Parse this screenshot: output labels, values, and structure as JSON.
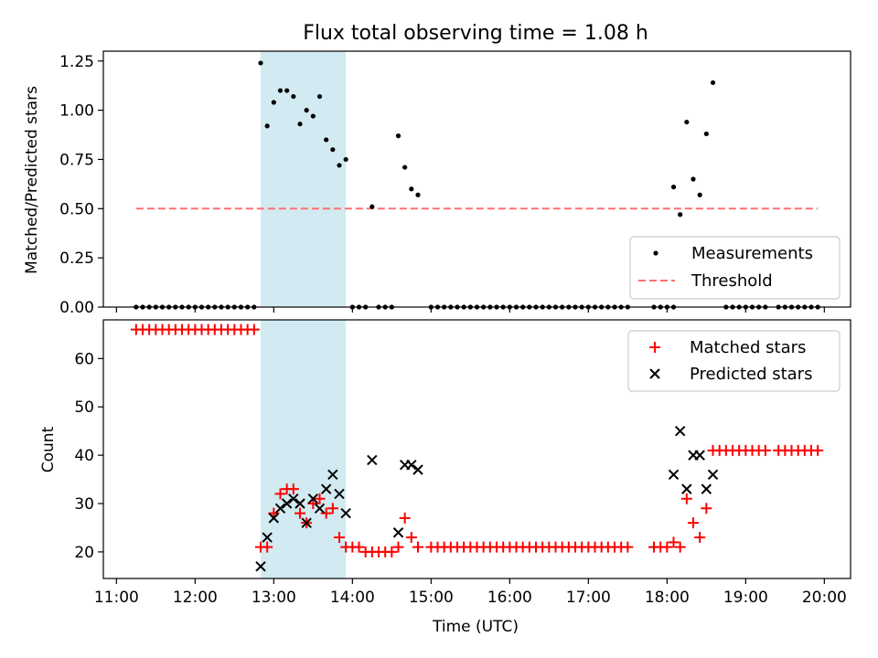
{
  "chart_data": [
    {
      "type": "scatter",
      "title": "Flux total observing time = 1.08 h",
      "ylabel": "Matched/Predicted stars",
      "ylim": [
        0,
        1.3
      ],
      "yticks": [
        0,
        0.25,
        0.5,
        0.75,
        1.0,
        1.25
      ],
      "ytick_labels": [
        "0.00",
        "0.25",
        "0.50",
        "0.75",
        "1.00",
        "1.25"
      ],
      "legend_position": "lower right",
      "highlight_span": {
        "x": [
          "12:50",
          "13:55"
        ],
        "color": "#add8e6"
      },
      "series": [
        {
          "name": "Measurements",
          "marker": "dot",
          "color": "#000000",
          "points": [
            [
              "11:15",
              0
            ],
            [
              "11:20",
              0
            ],
            [
              "11:25",
              0
            ],
            [
              "11:30",
              0
            ],
            [
              "11:35",
              0
            ],
            [
              "11:40",
              0
            ],
            [
              "11:45",
              0
            ],
            [
              "11:50",
              0
            ],
            [
              "11:55",
              0
            ],
            [
              "12:00",
              0
            ],
            [
              "12:05",
              0
            ],
            [
              "12:10",
              0
            ],
            [
              "12:15",
              0
            ],
            [
              "12:20",
              0
            ],
            [
              "12:25",
              0
            ],
            [
              "12:30",
              0
            ],
            [
              "12:35",
              0
            ],
            [
              "12:40",
              0
            ],
            [
              "12:45",
              0
            ],
            [
              "12:50",
              1.24
            ],
            [
              "12:55",
              0.92
            ],
            [
              "13:00",
              1.04
            ],
            [
              "13:05",
              1.1
            ],
            [
              "13:10",
              1.1
            ],
            [
              "13:15",
              1.07
            ],
            [
              "13:20",
              0.93
            ],
            [
              "13:25",
              1.0
            ],
            [
              "13:30",
              0.97
            ],
            [
              "13:35",
              1.07
            ],
            [
              "13:40",
              0.85
            ],
            [
              "13:45",
              0.8
            ],
            [
              "13:50",
              0.72
            ],
            [
              "13:55",
              0.75
            ],
            [
              "14:00",
              0
            ],
            [
              "14:05",
              0
            ],
            [
              "14:10",
              0
            ],
            [
              "14:15",
              0.51
            ],
            [
              "14:20",
              0
            ],
            [
              "14:25",
              0
            ],
            [
              "14:30",
              0
            ],
            [
              "14:35",
              0.87
            ],
            [
              "14:40",
              0.71
            ],
            [
              "14:45",
              0.6
            ],
            [
              "14:50",
              0.57
            ],
            [
              "15:00",
              0
            ],
            [
              "15:05",
              0
            ],
            [
              "15:10",
              0
            ],
            [
              "15:15",
              0
            ],
            [
              "15:20",
              0
            ],
            [
              "15:25",
              0
            ],
            [
              "15:30",
              0
            ],
            [
              "15:35",
              0
            ],
            [
              "15:40",
              0
            ],
            [
              "15:45",
              0
            ],
            [
              "15:50",
              0
            ],
            [
              "15:55",
              0
            ],
            [
              "16:00",
              0
            ],
            [
              "16:05",
              0
            ],
            [
              "16:10",
              0
            ],
            [
              "16:15",
              0
            ],
            [
              "16:20",
              0
            ],
            [
              "16:25",
              0
            ],
            [
              "16:30",
              0
            ],
            [
              "16:35",
              0
            ],
            [
              "16:40",
              0
            ],
            [
              "16:45",
              0
            ],
            [
              "16:50",
              0
            ],
            [
              "16:55",
              0
            ],
            [
              "17:00",
              0
            ],
            [
              "17:05",
              0
            ],
            [
              "17:10",
              0
            ],
            [
              "17:15",
              0
            ],
            [
              "17:20",
              0
            ],
            [
              "17:25",
              0
            ],
            [
              "17:30",
              0
            ],
            [
              "17:50",
              0
            ],
            [
              "17:55",
              0
            ],
            [
              "18:00",
              0
            ],
            [
              "18:05",
              0
            ],
            [
              "18:05",
              0.61
            ],
            [
              "18:10",
              0.47
            ],
            [
              "18:15",
              0.94
            ],
            [
              "18:20",
              0.65
            ],
            [
              "18:25",
              0.57
            ],
            [
              "18:30",
              0.88
            ],
            [
              "18:35",
              1.14
            ],
            [
              "18:45",
              0
            ],
            [
              "18:50",
              0
            ],
            [
              "18:55",
              0
            ],
            [
              "19:00",
              0
            ],
            [
              "19:05",
              0
            ],
            [
              "19:10",
              0
            ],
            [
              "19:15",
              0
            ],
            [
              "19:25",
              0
            ],
            [
              "19:30",
              0
            ],
            [
              "19:35",
              0
            ],
            [
              "19:40",
              0
            ],
            [
              "19:45",
              0
            ],
            [
              "19:50",
              0
            ],
            [
              "19:55",
              0
            ]
          ]
        },
        {
          "name": "Threshold",
          "marker": "dashed-line",
          "color": "#ff7070",
          "points": [
            [
              "11:15",
              0.5
            ],
            [
              "19:55",
              0.5
            ]
          ]
        }
      ]
    },
    {
      "type": "scatter",
      "xlabel": "Time (UTC)",
      "ylabel": "Count",
      "ylim": [
        14.5,
        68
      ],
      "yticks": [
        20,
        30,
        40,
        50,
        60
      ],
      "ytick_labels": [
        "20",
        "30",
        "40",
        "50",
        "60"
      ],
      "xticks": [
        "11:00",
        "12:00",
        "13:00",
        "14:00",
        "15:00",
        "16:00",
        "17:00",
        "18:00",
        "19:00",
        "20:00"
      ],
      "xtick_labels": [
        "11:00",
        "12:00",
        "13:00",
        "14:00",
        "15:00",
        "16:00",
        "17:00",
        "18:00",
        "19:00",
        "20:00"
      ],
      "xlim": [
        "10:50",
        "20:20"
      ],
      "legend_position": "upper right",
      "highlight_span": {
        "x": [
          "12:50",
          "13:55"
        ],
        "color": "#add8e6"
      },
      "series": [
        {
          "name": "Matched stars",
          "marker": "plus",
          "color": "#ff0000",
          "points": [
            [
              "11:15",
              66
            ],
            [
              "11:20",
              66
            ],
            [
              "11:25",
              66
            ],
            [
              "11:30",
              66
            ],
            [
              "11:35",
              66
            ],
            [
              "11:40",
              66
            ],
            [
              "11:45",
              66
            ],
            [
              "11:50",
              66
            ],
            [
              "11:55",
              66
            ],
            [
              "12:00",
              66
            ],
            [
              "12:05",
              66
            ],
            [
              "12:10",
              66
            ],
            [
              "12:15",
              66
            ],
            [
              "12:20",
              66
            ],
            [
              "12:25",
              66
            ],
            [
              "12:30",
              66
            ],
            [
              "12:35",
              66
            ],
            [
              "12:40",
              66
            ],
            [
              "12:45",
              66
            ],
            [
              "12:50",
              21
            ],
            [
              "12:55",
              21
            ],
            [
              "13:00",
              28
            ],
            [
              "13:05",
              32
            ],
            [
              "13:10",
              33
            ],
            [
              "13:15",
              33
            ],
            [
              "13:20",
              28
            ],
            [
              "13:25",
              26
            ],
            [
              "13:30",
              30
            ],
            [
              "13:35",
              31
            ],
            [
              "13:40",
              28
            ],
            [
              "13:45",
              29
            ],
            [
              "13:50",
              23
            ],
            [
              "13:55",
              21
            ],
            [
              "14:00",
              21
            ],
            [
              "14:05",
              21
            ],
            [
              "14:10",
              20
            ],
            [
              "14:15",
              20
            ],
            [
              "14:20",
              20
            ],
            [
              "14:25",
              20
            ],
            [
              "14:30",
              20
            ],
            [
              "14:35",
              21
            ],
            [
              "14:40",
              27
            ],
            [
              "14:45",
              23
            ],
            [
              "14:50",
              21
            ],
            [
              "15:00",
              21
            ],
            [
              "15:05",
              21
            ],
            [
              "15:10",
              21
            ],
            [
              "15:15",
              21
            ],
            [
              "15:20",
              21
            ],
            [
              "15:25",
              21
            ],
            [
              "15:30",
              21
            ],
            [
              "15:35",
              21
            ],
            [
              "15:40",
              21
            ],
            [
              "15:45",
              21
            ],
            [
              "15:50",
              21
            ],
            [
              "15:55",
              21
            ],
            [
              "16:00",
              21
            ],
            [
              "16:05",
              21
            ],
            [
              "16:10",
              21
            ],
            [
              "16:15",
              21
            ],
            [
              "16:20",
              21
            ],
            [
              "16:25",
              21
            ],
            [
              "16:30",
              21
            ],
            [
              "16:35",
              21
            ],
            [
              "16:40",
              21
            ],
            [
              "16:45",
              21
            ],
            [
              "16:50",
              21
            ],
            [
              "16:55",
              21
            ],
            [
              "17:00",
              21
            ],
            [
              "17:05",
              21
            ],
            [
              "17:10",
              21
            ],
            [
              "17:15",
              21
            ],
            [
              "17:20",
              21
            ],
            [
              "17:25",
              21
            ],
            [
              "17:30",
              21
            ],
            [
              "17:50",
              21
            ],
            [
              "17:55",
              21
            ],
            [
              "18:00",
              21
            ],
            [
              "18:05",
              22
            ],
            [
              "18:10",
              21
            ],
            [
              "18:15",
              31
            ],
            [
              "18:20",
              26
            ],
            [
              "18:25",
              23
            ],
            [
              "18:30",
              29
            ],
            [
              "18:35",
              41
            ],
            [
              "18:40",
              41
            ],
            [
              "18:45",
              41
            ],
            [
              "18:50",
              41
            ],
            [
              "18:55",
              41
            ],
            [
              "19:00",
              41
            ],
            [
              "19:05",
              41
            ],
            [
              "19:10",
              41
            ],
            [
              "19:15",
              41
            ],
            [
              "19:25",
              41
            ],
            [
              "19:30",
              41
            ],
            [
              "19:35",
              41
            ],
            [
              "19:40",
              41
            ],
            [
              "19:45",
              41
            ],
            [
              "19:50",
              41
            ],
            [
              "19:55",
              41
            ]
          ]
        },
        {
          "name": "Predicted stars",
          "marker": "x",
          "color": "#000000",
          "points": [
            [
              "12:50",
              17
            ],
            [
              "12:55",
              23
            ],
            [
              "13:00",
              27
            ],
            [
              "13:05",
              29
            ],
            [
              "13:10",
              30
            ],
            [
              "13:15",
              31
            ],
            [
              "13:20",
              30
            ],
            [
              "13:25",
              26
            ],
            [
              "13:30",
              31
            ],
            [
              "13:35",
              29
            ],
            [
              "13:40",
              33
            ],
            [
              "13:45",
              36
            ],
            [
              "13:50",
              32
            ],
            [
              "13:55",
              28
            ],
            [
              "14:15",
              39
            ],
            [
              "14:35",
              24
            ],
            [
              "14:40",
              38
            ],
            [
              "14:45",
              38
            ],
            [
              "14:50",
              37
            ],
            [
              "18:05",
              36
            ],
            [
              "18:10",
              45
            ],
            [
              "18:15",
              33
            ],
            [
              "18:20",
              40
            ],
            [
              "18:25",
              40
            ],
            [
              "18:30",
              33
            ],
            [
              "18:35",
              36
            ]
          ]
        }
      ]
    }
  ]
}
